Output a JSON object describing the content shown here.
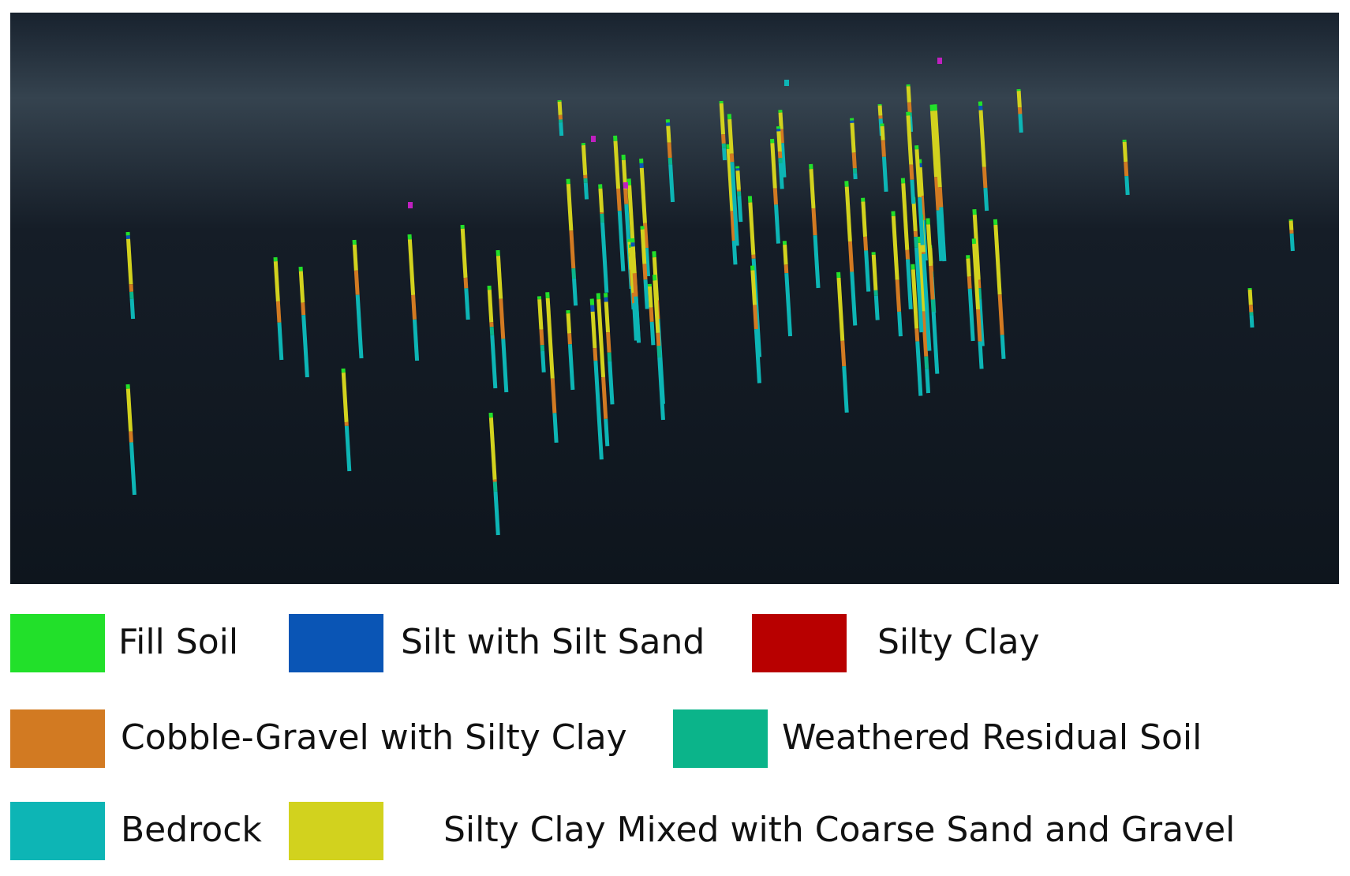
{
  "legend": {
    "items": [
      {
        "label": "Fill Soil",
        "color": "#22e02a"
      },
      {
        "label": "Silt with Silt Sand",
        "color": "#0a55b5"
      },
      {
        "label": "Silty Clay",
        "color": "#b80000"
      },
      {
        "label": "Cobble-Gravel with Silty Clay",
        "color": "#d27a22"
      },
      {
        "label": "Weathered Residual Soil",
        "color": "#0bb48a"
      },
      {
        "label": "Bedrock",
        "color": "#0db5b5"
      },
      {
        "label": "Silty Clay Mixed with Coarse Sand and Gravel",
        "color": "#d2d21e"
      }
    ]
  }
}
